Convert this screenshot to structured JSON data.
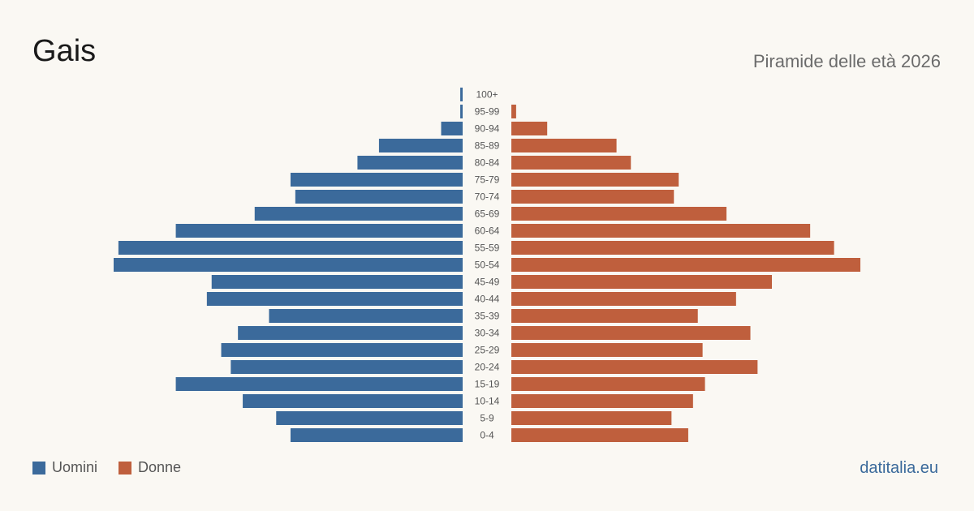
{
  "header": {
    "title": "Gais",
    "subtitle": "Piramide delle età 2026"
  },
  "legend": {
    "items": [
      {
        "label": "Uomini",
        "color": "#3b6a9b"
      },
      {
        "label": "Donne",
        "color": "#bf5f3d"
      }
    ]
  },
  "footer": {
    "brand": "datitalia.eu"
  },
  "chart_data": {
    "type": "bar",
    "orientation": "horizontal-pyramid",
    "categories": [
      "100+",
      "95-99",
      "90-94",
      "85-89",
      "80-84",
      "75-79",
      "70-74",
      "65-69",
      "60-64",
      "55-59",
      "50-54",
      "45-49",
      "40-44",
      "35-39",
      "30-34",
      "25-29",
      "20-24",
      "15-19",
      "10-14",
      "5-9",
      "0-4"
    ],
    "series": [
      {
        "name": "Uomini",
        "color": "#3b6a9b",
        "values": [
          1,
          1,
          9,
          35,
          44,
          72,
          70,
          87,
          120,
          144,
          146,
          105,
          107,
          81,
          94,
          101,
          97,
          120,
          92,
          78,
          72
        ]
      },
      {
        "name": "Donne",
        "color": "#bf5f3d",
        "values": [
          0,
          2,
          15,
          44,
          50,
          70,
          68,
          90,
          125,
          135,
          146,
          109,
          94,
          78,
          100,
          80,
          103,
          81,
          76,
          67,
          74
        ]
      }
    ],
    "xlim": [
      0,
      146
    ],
    "grid": false,
    "legend_position": "bottom-left"
  }
}
